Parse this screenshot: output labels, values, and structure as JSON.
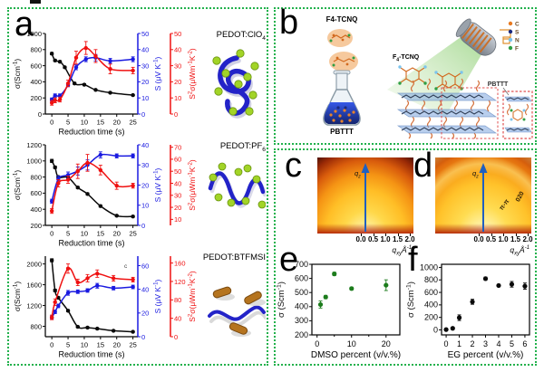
{
  "figure": {
    "border_color": "#21b14c",
    "background": "#ffffff"
  },
  "panel_labels": {
    "a": "a",
    "b": "b",
    "c": "c",
    "d": "d",
    "e": "e",
    "f": "f"
  },
  "panel_b": {
    "f4tcnq_top": "F4-TCNQ",
    "flask_label": "PBTTT",
    "beam_label": "F_{4}-TCNQ",
    "structure_label": "PBTTT",
    "legend": [
      {
        "symbol": "C",
        "color": "#e87a20"
      },
      {
        "symbol": "S",
        "color": "#1a2a7e"
      },
      {
        "symbol": "N",
        "color": "#7cc4ec"
      },
      {
        "symbol": "F",
        "color": "#2f9e44"
      }
    ]
  },
  "gixd": {
    "c": {
      "arrow_label": "q_{z}",
      "x_ticks": [
        "0.0",
        "0.5",
        "1.0",
        "1.5",
        "2.0"
      ],
      "x_label": "q_{xy}Å^{-1}",
      "annotations": []
    },
    "d": {
      "arrow_label": "q_{z}",
      "x_ticks": [
        "0.0",
        "0.5",
        "1.0",
        "1.5",
        "2.0"
      ],
      "x_label": "q_{xy}Å^{-1}",
      "annotations": [
        "π-π",
        "020"
      ]
    }
  },
  "chart_data": [
    {
      "id": "clo4",
      "kind": "triple",
      "type": "line",
      "title": "PEDOT:ClO_{4}",
      "xlabel": "Reduction time (s)",
      "xlim": [
        -2,
        26.5
      ],
      "xticks": [
        0,
        5,
        10,
        15,
        20,
        25
      ],
      "axes": {
        "left": {
          "label": "σ(Scm^{-1})",
          "lim": [
            0,
            1000
          ],
          "ticks": [
            0,
            200,
            400,
            600,
            800,
            1000
          ],
          "color": "#0a0a0a"
        },
        "right": {
          "label": "S (μV K^{-1})",
          "lim": [
            0,
            50
          ],
          "ticks": [
            0,
            10,
            20,
            30,
            40,
            50
          ],
          "color": "#1a1ae0"
        },
        "far": {
          "label": "S^{2}σ(μWm^{-1}K^{-2})",
          "lim": [
            0,
            50
          ],
          "ticks": [
            0,
            10,
            20,
            30,
            40,
            50
          ],
          "color": "#ef1010"
        }
      },
      "series": [
        {
          "name": "conductivity",
          "axis": "left",
          "color": "#0a0a0a",
          "x": [
            0,
            1,
            2.5,
            4,
            7,
            10,
            13.5,
            18,
            25
          ],
          "y": [
            750,
            665,
            650,
            580,
            380,
            365,
            300,
            265,
            235
          ],
          "yerr": [
            15,
            12,
            12,
            12,
            12,
            12,
            10,
            10,
            8
          ]
        },
        {
          "name": "seebeck",
          "axis": "right",
          "color": "#1a1ae0",
          "x": [
            0,
            1,
            2.5,
            5,
            7.5,
            10.5,
            13.5,
            18,
            25
          ],
          "y": [
            9,
            11.5,
            11.5,
            18,
            29,
            34,
            35,
            33,
            34
          ],
          "yerr": [
            1,
            1,
            1,
            1,
            1.5,
            1.5,
            2,
            1.5,
            1.5
          ]
        },
        {
          "name": "power_factor",
          "axis": "far",
          "color": "#ef1010",
          "x": [
            0,
            1,
            2.5,
            5,
            7.5,
            10.5,
            13.5,
            18,
            25
          ],
          "y": [
            7,
            8.5,
            9,
            19,
            35,
            41,
            36,
            28,
            27
          ],
          "yerr": [
            1.5,
            1.5,
            1.5,
            2,
            4,
            4,
            4,
            3,
            2
          ]
        }
      ]
    },
    {
      "id": "pf6",
      "kind": "triple",
      "type": "line",
      "title": "PEDOT:PF_{6}",
      "xlabel": "Reduction time (s)",
      "xlim": [
        -2,
        26.5
      ],
      "xticks": [
        0,
        5,
        10,
        15,
        20,
        25
      ],
      "axes": {
        "left": {
          "label": "σ(Scm^{-1})",
          "lim": [
            200,
            1200
          ],
          "ticks": [
            200,
            400,
            600,
            800,
            1000,
            1200
          ],
          "color": "#0a0a0a"
        },
        "right": {
          "label": "S (μV K^{-1})",
          "lim": [
            0,
            40
          ],
          "ticks": [
            0,
            10,
            20,
            30,
            40
          ],
          "color": "#1a1ae0"
        },
        "far": {
          "label": "S^{2}σ(μWm^{-1}K^{-2})",
          "lim": [
            5,
            72
          ],
          "ticks": [
            10,
            20,
            30,
            40,
            50,
            60,
            70
          ],
          "color": "#ef1010"
        }
      },
      "series": [
        {
          "name": "conductivity",
          "axis": "left",
          "color": "#0a0a0a",
          "x": [
            0,
            1,
            2,
            5,
            8,
            11,
            15,
            20,
            25
          ],
          "y": [
            1000,
            920,
            800,
            795,
            670,
            590,
            440,
            320,
            310
          ],
          "yerr": [
            20,
            15,
            15,
            15,
            12,
            12,
            12,
            10,
            10
          ]
        },
        {
          "name": "seebeck",
          "axis": "right",
          "color": "#1a1ae0",
          "x": [
            0,
            2,
            5,
            8,
            11,
            15,
            20,
            25
          ],
          "y": [
            12,
            23,
            25,
            27,
            30,
            35,
            34.5,
            34.5
          ],
          "yerr": [
            1,
            1.5,
            1.5,
            2,
            2.5,
            1.5,
            1,
            1
          ]
        },
        {
          "name": "power_factor",
          "axis": "far",
          "color": "#ef1010",
          "x": [
            0,
            2,
            5,
            8,
            11,
            15,
            20,
            25
          ],
          "y": [
            17,
            40,
            43,
            50,
            57,
            51,
            38,
            38
          ],
          "yerr": [
            2,
            3,
            3,
            6,
            7,
            4,
            3,
            2
          ]
        }
      ]
    },
    {
      "id": "btfmsi",
      "kind": "triple",
      "type": "line",
      "title": "PEDOT:BTFMSI",
      "xlabel": "Reduction time (s)",
      "xlim": [
        -2,
        26.5
      ],
      "xticks": [
        0,
        5,
        10,
        15,
        20,
        25
      ],
      "axes": {
        "left": {
          "label": "σ(Scm^{-1})",
          "lim": [
            600,
            2150
          ],
          "ticks": [
            800,
            1200,
            1600,
            2000
          ],
          "color": "#0a0a0a"
        },
        "right": {
          "label": "S (μV K^{-1})",
          "lim": [
            0,
            68
          ],
          "ticks": [
            0,
            20,
            40,
            60
          ],
          "color": "#1a1ae0"
        },
        "far": {
          "label": "S^{2}σ(μWm^{-1}K^{-2})",
          "lim": [
            0,
            175
          ],
          "ticks": [
            0,
            40,
            80,
            120,
            160
          ],
          "color": "#ef1010"
        }
      },
      "annotations": [
        {
          "text": "c",
          "axis": "right",
          "x": 23.2,
          "y": 58
        }
      ],
      "series": [
        {
          "name": "conductivity",
          "axis": "left",
          "color": "#0a0a0a",
          "x": [
            0,
            1,
            2,
            5,
            8,
            11,
            14,
            19,
            25
          ],
          "y": [
            2070,
            1490,
            1350,
            1100,
            790,
            775,
            755,
            715,
            695
          ],
          "yerr": [
            30,
            25,
            20,
            20,
            15,
            15,
            12,
            12,
            12
          ]
        },
        {
          "name": "seebeck",
          "axis": "right",
          "color": "#1a1ae0",
          "x": [
            0,
            1,
            2,
            5,
            8,
            11,
            14,
            19,
            25
          ],
          "y": [
            16,
            21,
            26,
            37,
            38,
            39,
            43,
            41,
            42
          ],
          "yerr": [
            1.5,
            1.5,
            1.5,
            2,
            1.5,
            1.5,
            2,
            1.5,
            1.5
          ]
        },
        {
          "name": "power_factor",
          "axis": "far",
          "color": "#ef1010",
          "x": [
            0,
            1,
            5,
            8,
            11,
            14,
            19,
            25
          ],
          "y": [
            42,
            75,
            148,
            118,
            127,
            137,
            127,
            124
          ],
          "yerr": [
            5,
            7,
            10,
            7,
            8,
            8,
            6,
            5
          ]
        }
      ]
    },
    {
      "id": "dmso",
      "kind": "scat",
      "type": "scatter",
      "title": "",
      "xlabel": "DMSO percent (v/v.%)",
      "xlim": [
        -1.5,
        24
      ],
      "xticks": [
        0,
        10,
        20
      ],
      "xminor": [
        5,
        15
      ],
      "box": true,
      "axes": {
        "left": {
          "label": "σ (Scm^{-1})",
          "lim": [
            200,
            700
          ],
          "ticks": [
            200,
            300,
            400,
            500,
            600,
            700
          ],
          "color": "#0a0a0a"
        }
      },
      "series": [
        {
          "name": "conductivity_dmso",
          "axis": "left",
          "color": "#1c7c1c",
          "line": false,
          "x": [
            1,
            2.5,
            5,
            10,
            20
          ],
          "y": [
            415,
            468,
            632,
            528,
            552
          ],
          "yerr": [
            25,
            12,
            12,
            10,
            38
          ]
        }
      ]
    },
    {
      "id": "eg",
      "kind": "scat",
      "type": "scatter",
      "title": "",
      "xlabel": "EG percent (v/v.%)",
      "xlim": [
        -0.35,
        6.35
      ],
      "xticks": [
        0,
        1,
        2,
        3,
        4,
        5,
        6
      ],
      "box": true,
      "axes": {
        "left": {
          "label": "σ (Scm^{-1})",
          "lim": [
            -80,
            1050
          ],
          "ticks": [
            0,
            200,
            400,
            600,
            800,
            1000
          ],
          "color": "#0a0a0a"
        }
      },
      "series": [
        {
          "name": "conductivity_eg",
          "axis": "left",
          "color": "#0a0a0a",
          "line": false,
          "x": [
            0,
            0.5,
            1,
            2,
            3,
            4,
            5,
            6
          ],
          "y": [
            5,
            25,
            195,
            450,
            820,
            710,
            730,
            700
          ],
          "yerr": [
            12,
            15,
            45,
            40,
            25,
            20,
            45,
            50
          ]
        }
      ]
    }
  ]
}
